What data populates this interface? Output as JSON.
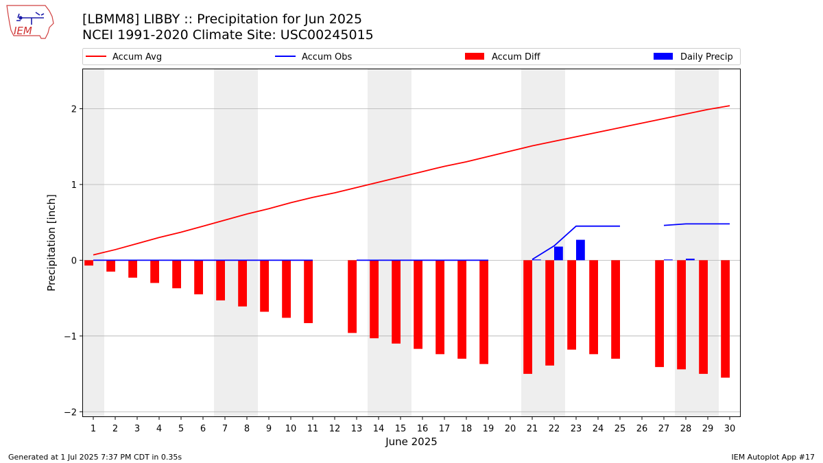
{
  "header": {
    "title_line1": "[LBMM8] LIBBY :: Precipitation for Jun 2025",
    "title_line2": "NCEI 1991-2020 Climate Site: USC00245015"
  },
  "logo": {
    "text": "IEM",
    "icon": "iem-iowa-logo"
  },
  "footer": {
    "generated": "Generated at 1 Jul 2025 7:37 PM CDT in 0.35s",
    "app": "IEM Autoplot App #17"
  },
  "colors": {
    "accum_avg": "#ff0000",
    "accum_obs": "#0000ff",
    "accum_diff": "#ff0000",
    "daily_precip": "#0000ff",
    "weekend_shade": "#eeeeee",
    "grid": "#b0b0b0"
  },
  "chart_data": {
    "type": "bar",
    "xlabel": "June 2025",
    "ylabel": "Precipitation [inch]",
    "ylim": [
      -2.07,
      2.53
    ],
    "yticks": [
      -2,
      -1,
      0,
      1,
      2
    ],
    "ytick_labels": [
      "−2",
      "−1",
      "0",
      "1",
      "2"
    ],
    "x": [
      1,
      2,
      3,
      4,
      5,
      6,
      7,
      8,
      9,
      10,
      11,
      12,
      13,
      14,
      15,
      16,
      17,
      18,
      19,
      20,
      21,
      22,
      23,
      24,
      25,
      26,
      27,
      28,
      29,
      30
    ],
    "xtick_labels": [
      "1",
      "2",
      "3",
      "4",
      "5",
      "6",
      "7",
      "8",
      "9",
      "10",
      "11",
      "12",
      "13",
      "14",
      "15",
      "16",
      "17",
      "18",
      "19",
      "20",
      "21",
      "22",
      "23",
      "24",
      "25",
      "26",
      "27",
      "28",
      "29",
      "30"
    ],
    "xlim": [
      0.5,
      30.5
    ],
    "grid": "horizontal",
    "legend_position": "top, above plot",
    "shaded_weekends": [
      [
        0.5,
        1.5
      ],
      [
        6.5,
        8.5
      ],
      [
        13.5,
        15.5
      ],
      [
        20.5,
        22.5
      ],
      [
        27.5,
        29.5
      ]
    ],
    "series": [
      {
        "name": "Accum Avg",
        "kind": "line",
        "values": [
          0.07,
          0.14,
          0.22,
          0.3,
          0.37,
          0.45,
          0.53,
          0.61,
          0.68,
          0.76,
          0.83,
          0.89,
          0.96,
          1.03,
          1.1,
          1.17,
          1.24,
          1.3,
          1.37,
          1.44,
          1.51,
          1.57,
          1.63,
          1.69,
          1.75,
          1.81,
          1.87,
          1.93,
          1.99,
          2.04
        ]
      },
      {
        "name": "Accum Obs",
        "kind": "line",
        "values": [
          0,
          0,
          0,
          0,
          0,
          0,
          0,
          0,
          0,
          0,
          0,
          null,
          0,
          0,
          0,
          0,
          0,
          0,
          0,
          null,
          0.01,
          0.19,
          0.45,
          0.45,
          0.45,
          null,
          0.46,
          0.48,
          0.48,
          0.48
        ]
      },
      {
        "name": "Accum Diff",
        "kind": "bar",
        "values": [
          -0.07,
          -0.15,
          -0.23,
          -0.3,
          -0.37,
          -0.45,
          -0.53,
          -0.61,
          -0.68,
          -0.76,
          -0.83,
          null,
          -0.96,
          -1.03,
          -1.1,
          -1.17,
          -1.24,
          -1.3,
          -1.37,
          null,
          -1.5,
          -1.39,
          -1.18,
          -1.24,
          -1.3,
          null,
          -1.41,
          -1.44,
          -1.5,
          -1.55
        ]
      },
      {
        "name": "Daily Precip",
        "kind": "bar",
        "values": [
          0,
          0,
          0,
          0,
          0,
          0,
          0,
          0,
          0,
          0,
          0,
          null,
          0,
          0,
          0,
          0,
          0,
          0,
          0,
          null,
          0.01,
          0.18,
          0.27,
          0,
          0,
          null,
          0.01,
          0.02,
          0,
          0
        ]
      }
    ]
  }
}
